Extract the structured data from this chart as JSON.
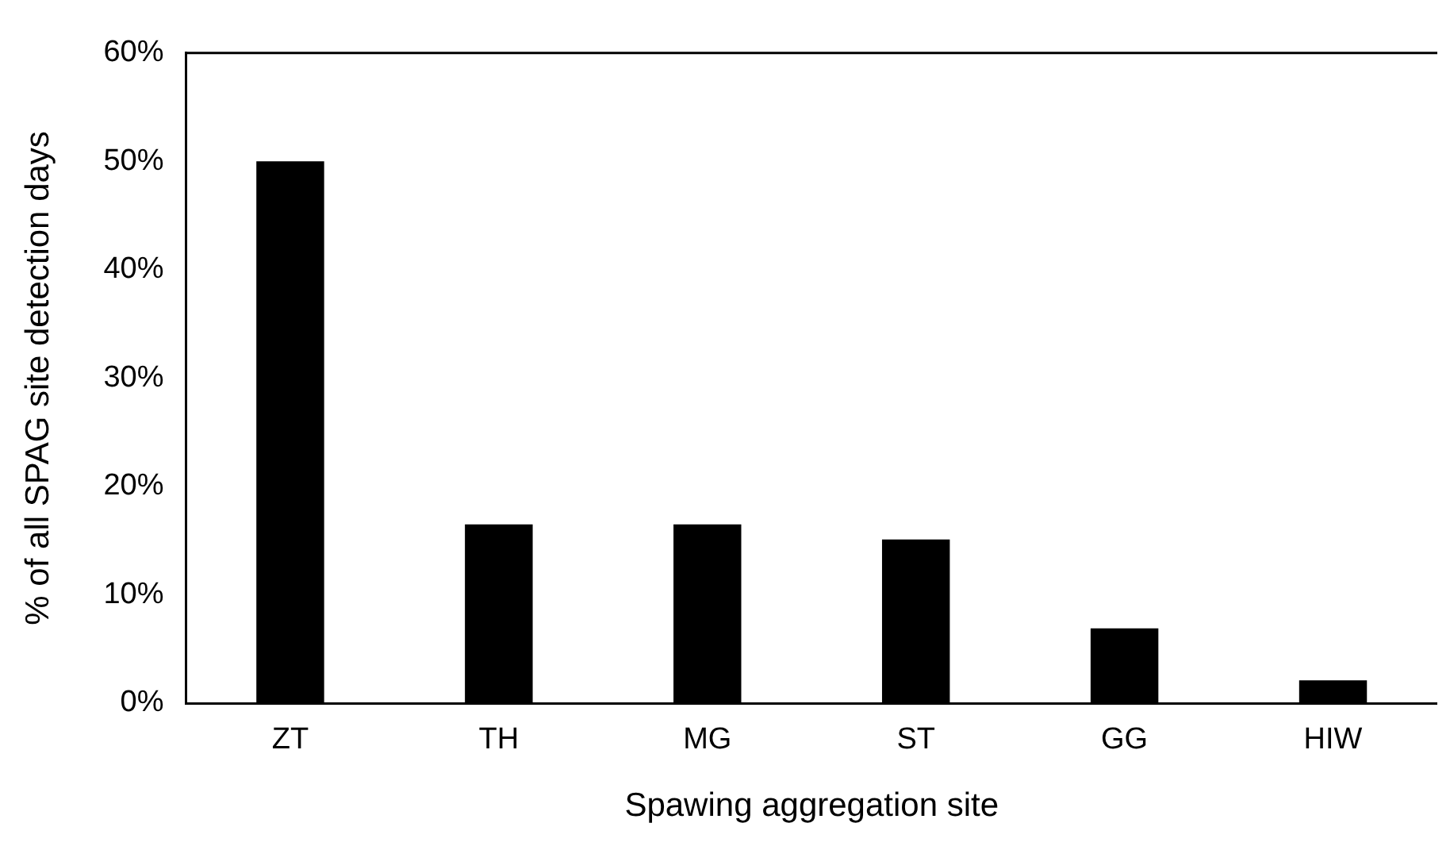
{
  "chart_data": {
    "type": "bar",
    "xlabel": "Spawing aggregation site",
    "ylabel": "% of all SPAG site detection days",
    "categories": [
      "ZT",
      "TH",
      "MG",
      "ST",
      "GG",
      "HIW"
    ],
    "values": [
      50.0,
      16.5,
      16.5,
      15.1,
      6.9,
      2.1
    ],
    "color": "#000000",
    "ylim": [
      0,
      60
    ],
    "yticks": [
      {
        "value": 0,
        "label": "0%"
      },
      {
        "value": 10,
        "label": "10%"
      },
      {
        "value": 20,
        "label": "20%"
      },
      {
        "value": 30,
        "label": "30%"
      },
      {
        "value": 40,
        "label": "40%"
      },
      {
        "value": 50,
        "label": "50%"
      },
      {
        "value": 60,
        "label": "60%"
      }
    ],
    "grid": false,
    "legend": false
  }
}
